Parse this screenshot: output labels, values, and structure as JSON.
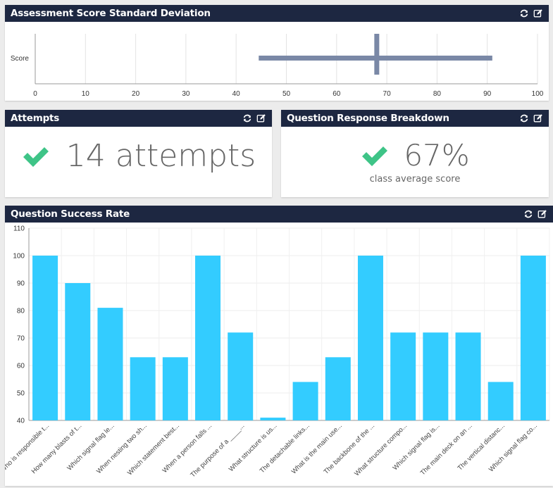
{
  "colors": {
    "header_bg": "#1d2741",
    "accent_green": "#3ec487",
    "bar_fill": "#33ccff",
    "sd_bar": "#7a88a6",
    "stat_text": "#666666"
  },
  "icons": {
    "refresh": "refresh-icon",
    "edit": "edit-icon",
    "check": "check-icon"
  },
  "std_dev_panel": {
    "title": "Assessment Score Standard Deviation",
    "chart_data": {
      "type": "errorbar",
      "categories": [
        "Score"
      ],
      "orientation": "horizontal",
      "mean": 68,
      "low": 44.5,
      "high": 91,
      "xlim": [
        0,
        100
      ],
      "xticks": [
        0,
        10,
        20,
        30,
        40,
        50,
        60,
        70,
        80,
        90,
        100
      ],
      "grid": true
    }
  },
  "attempts_panel": {
    "title": "Attempts",
    "value_text": "14 attempts"
  },
  "breakdown_panel": {
    "title": "Question Response Breakdown",
    "value_text": "67%",
    "subtitle": "class average score"
  },
  "success_panel": {
    "title": "Question Success Rate",
    "chart_data": {
      "type": "bar",
      "categories": [
        "Who is responsible t...",
        "How many blasts of t...",
        "Which signal flag le...",
        "When nesting two sh...",
        "Which statement best...",
        "When a person falls ...",
        "The purpose of a ____...",
        "What structure is us...",
        "The detachable links...",
        "What is the main use...",
        "The backbone of the ...",
        "What structure compo...",
        "Which signal flag is...",
        "The main deck on an ...",
        "The vertical distanc...",
        "Which signal flag co..."
      ],
      "values": [
        100,
        90,
        81,
        63,
        63,
        100,
        72,
        41,
        54,
        63,
        100,
        72,
        72,
        72,
        54,
        100
      ],
      "ylim": [
        40,
        110
      ],
      "yticks": [
        40,
        50,
        60,
        70,
        80,
        90,
        100,
        110
      ],
      "grid": true
    }
  }
}
